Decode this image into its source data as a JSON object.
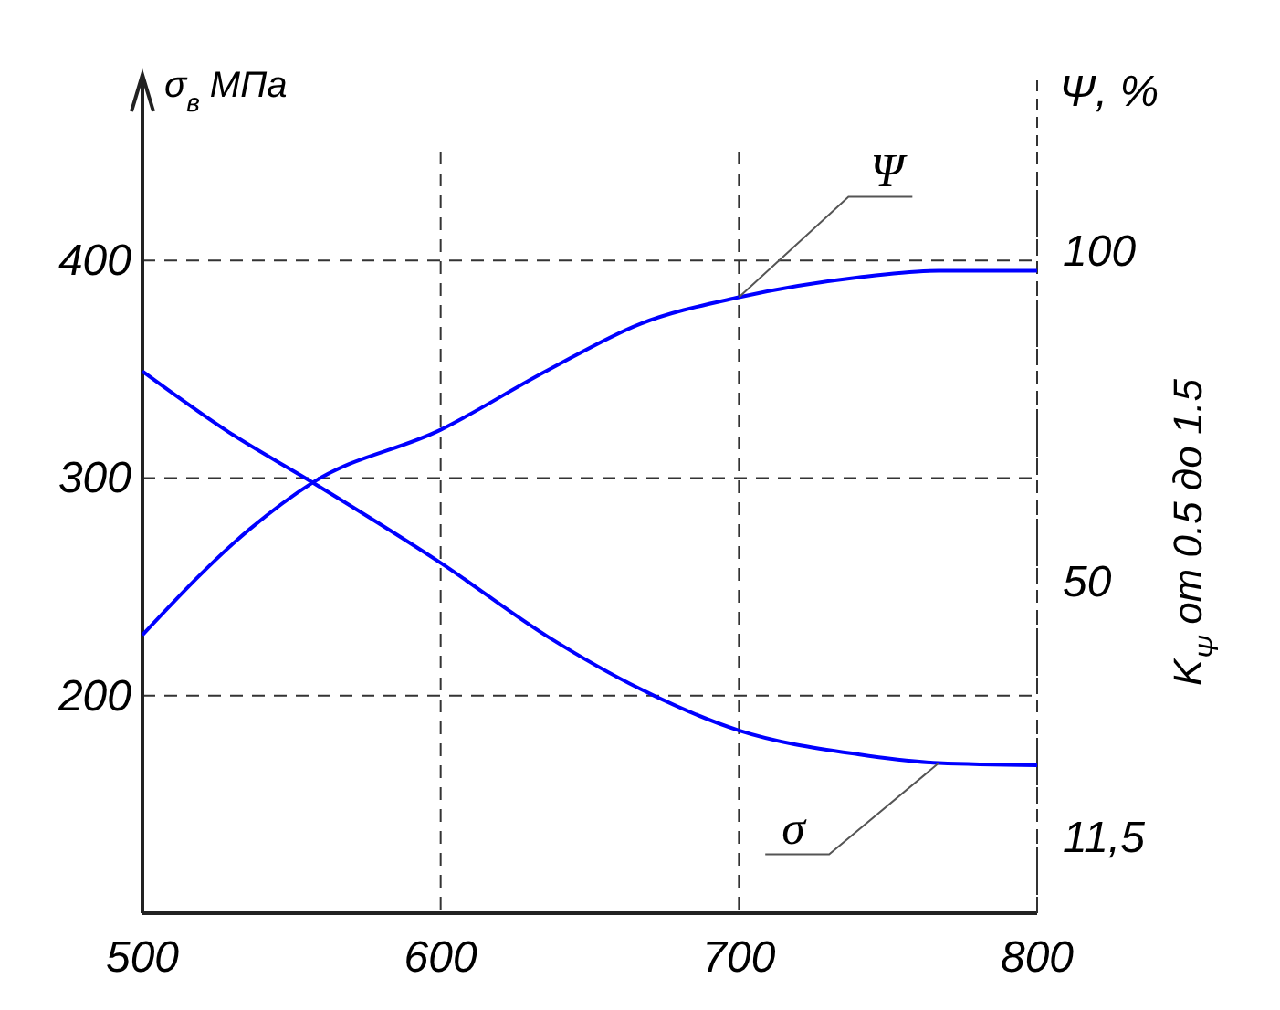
{
  "chart_data": {
    "type": "line",
    "ylabel": "σ$_{в}$ МПа",
    "y2label": "Ψ, %",
    "annotations": [
      "K$_{Ψ}$ от 0.5 до 1.5"
    ],
    "xlim": [
      500,
      800
    ],
    "xticks": [
      500,
      600,
      700,
      800
    ],
    "ylim": [
      100,
      450
    ],
    "yticks": [
      200,
      300,
      400
    ],
    "y2lim": [
      0,
      115
    ],
    "y2ticks": [
      {
        "value": 11.5,
        "label": "11,5"
      },
      50,
      100
    ],
    "grid": true,
    "line_style": "solid",
    "series": [
      {
        "name": "Ψ",
        "color": "#0000ff",
        "axis": "y2",
        "x": [
          500,
          536,
          557,
          600,
          636,
          667,
          700,
          740,
          767,
          800
        ],
        "values": [
          42,
          58,
          65,
          73,
          82,
          89,
          93,
          96,
          97,
          97
        ]
      },
      {
        "name": "σ",
        "color": "#0000ff",
        "axis": "y",
        "x": [
          500,
          529,
          557,
          600,
          636,
          667,
          700,
          740,
          767,
          800
        ],
        "values": [
          349,
          321,
          298,
          261,
          227,
          203,
          184,
          173,
          169,
          168
        ]
      }
    ]
  }
}
